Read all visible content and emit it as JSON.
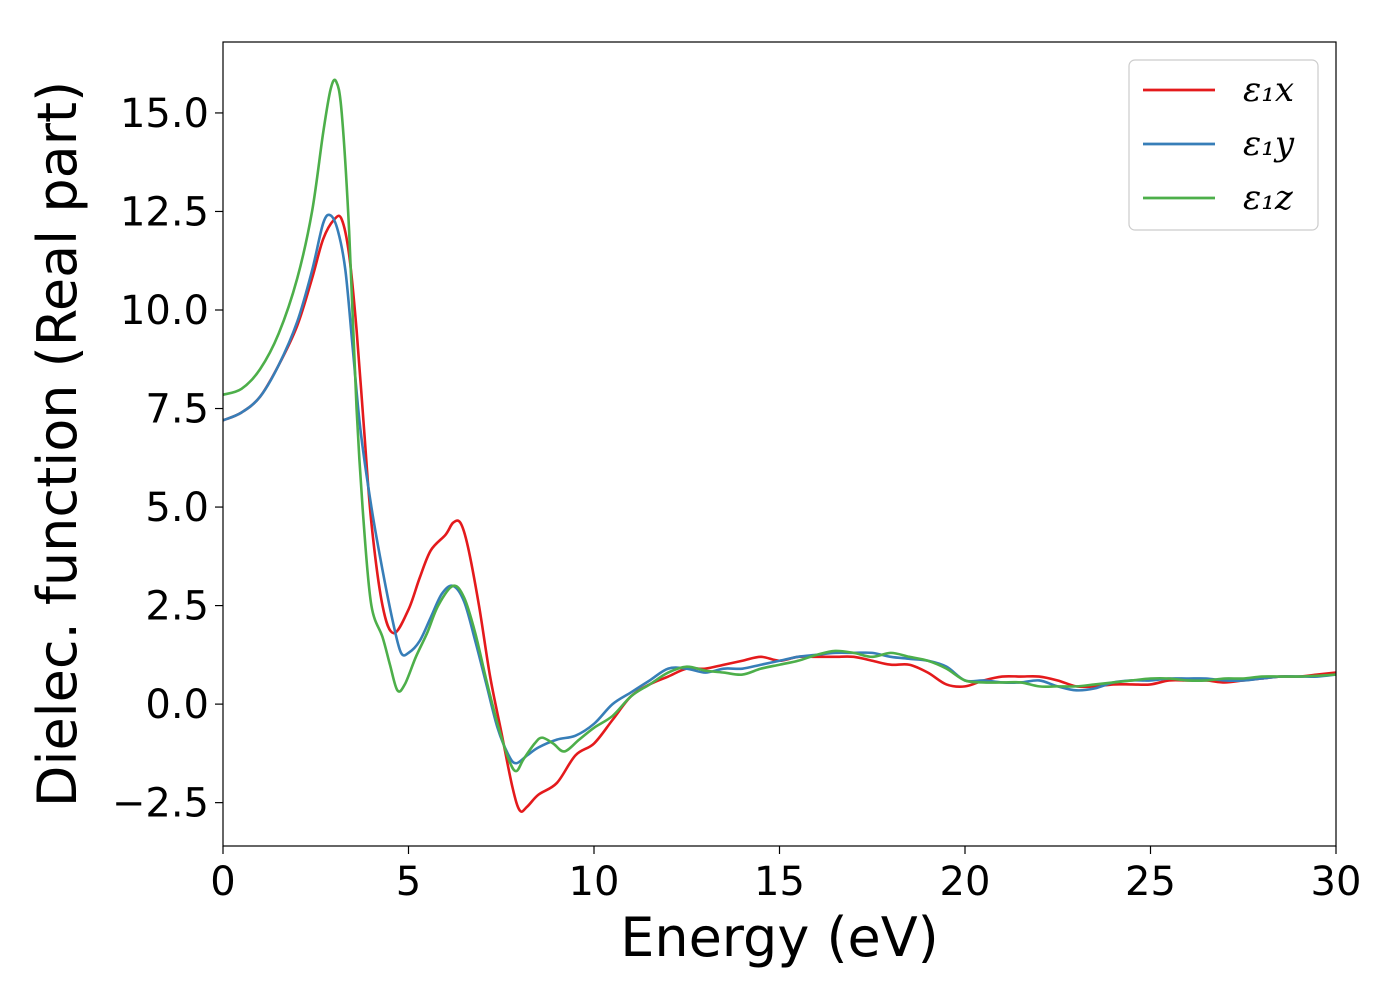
{
  "chart_data": {
    "type": "line",
    "title": "",
    "xlabel": "Energy (eV)",
    "ylabel": "Dielec. function (Real part)",
    "xlim": [
      0,
      30
    ],
    "ylim": [
      -3.6,
      16.8
    ],
    "xticks": [
      0,
      5,
      10,
      15,
      20,
      25,
      30
    ],
    "xtick_labels": [
      "0",
      "5",
      "10",
      "15",
      "20",
      "25",
      "30"
    ],
    "yticks": [
      -2.5,
      0.0,
      2.5,
      5.0,
      7.5,
      10.0,
      12.5,
      15.0
    ],
    "ytick_labels": [
      "−2.5",
      "0.0",
      "2.5",
      "5.0",
      "7.5",
      "10.0",
      "12.5",
      "15.0"
    ],
    "grid": false,
    "legend": {
      "position": "top-right"
    },
    "series": [
      {
        "name": "ε₁x",
        "color": "#e41a1c",
        "points": [
          [
            0,
            7.2
          ],
          [
            0.5,
            7.4
          ],
          [
            1.0,
            7.8
          ],
          [
            1.5,
            8.6
          ],
          [
            2.0,
            9.6
          ],
          [
            2.4,
            10.8
          ],
          [
            2.7,
            11.8
          ],
          [
            3.0,
            12.3
          ],
          [
            3.2,
            12.3
          ],
          [
            3.4,
            11.4
          ],
          [
            3.6,
            9.5
          ],
          [
            3.8,
            7.0
          ],
          [
            4.0,
            4.6
          ],
          [
            4.3,
            2.5
          ],
          [
            4.6,
            1.8
          ],
          [
            5.0,
            2.4
          ],
          [
            5.3,
            3.2
          ],
          [
            5.6,
            3.9
          ],
          [
            6.0,
            4.3
          ],
          [
            6.2,
            4.6
          ],
          [
            6.4,
            4.6
          ],
          [
            6.6,
            4.0
          ],
          [
            6.9,
            2.5
          ],
          [
            7.2,
            0.7
          ],
          [
            7.5,
            -0.7
          ],
          [
            7.8,
            -2.1
          ],
          [
            8.0,
            -2.7
          ],
          [
            8.2,
            -2.6
          ],
          [
            8.5,
            -2.3
          ],
          [
            9.0,
            -2.0
          ],
          [
            9.5,
            -1.3
          ],
          [
            10.0,
            -1.0
          ],
          [
            10.5,
            -0.4
          ],
          [
            11.0,
            0.2
          ],
          [
            11.5,
            0.5
          ],
          [
            12.0,
            0.7
          ],
          [
            12.5,
            0.9
          ],
          [
            13.0,
            0.9
          ],
          [
            13.5,
            1.0
          ],
          [
            14.0,
            1.1
          ],
          [
            14.5,
            1.2
          ],
          [
            15.0,
            1.1
          ],
          [
            15.5,
            1.2
          ],
          [
            16.0,
            1.2
          ],
          [
            16.5,
            1.2
          ],
          [
            17.0,
            1.2
          ],
          [
            17.5,
            1.1
          ],
          [
            18.0,
            1.0
          ],
          [
            18.5,
            1.0
          ],
          [
            19.0,
            0.8
          ],
          [
            19.5,
            0.5
          ],
          [
            20.0,
            0.45
          ],
          [
            20.5,
            0.6
          ],
          [
            21.0,
            0.7
          ],
          [
            21.5,
            0.7
          ],
          [
            22.0,
            0.7
          ],
          [
            22.5,
            0.6
          ],
          [
            23.0,
            0.45
          ],
          [
            23.5,
            0.45
          ],
          [
            24.0,
            0.5
          ],
          [
            24.5,
            0.5
          ],
          [
            25.0,
            0.5
          ],
          [
            25.5,
            0.6
          ],
          [
            26.0,
            0.6
          ],
          [
            26.5,
            0.6
          ],
          [
            27.0,
            0.55
          ],
          [
            27.5,
            0.6
          ],
          [
            28.0,
            0.65
          ],
          [
            28.5,
            0.7
          ],
          [
            29.0,
            0.7
          ],
          [
            29.5,
            0.75
          ],
          [
            30.0,
            0.8
          ]
        ]
      },
      {
        "name": "ε₁y",
        "color": "#377eb8",
        "points": [
          [
            0,
            7.2
          ],
          [
            0.5,
            7.4
          ],
          [
            1.0,
            7.8
          ],
          [
            1.5,
            8.6
          ],
          [
            2.0,
            9.7
          ],
          [
            2.4,
            11.0
          ],
          [
            2.7,
            12.2
          ],
          [
            2.9,
            12.4
          ],
          [
            3.1,
            12.0
          ],
          [
            3.3,
            11.0
          ],
          [
            3.5,
            9.0
          ],
          [
            3.7,
            7.0
          ],
          [
            4.0,
            5.0
          ],
          [
            4.3,
            3.4
          ],
          [
            4.6,
            2.0
          ],
          [
            4.8,
            1.3
          ],
          [
            5.0,
            1.3
          ],
          [
            5.3,
            1.6
          ],
          [
            5.6,
            2.2
          ],
          [
            5.9,
            2.8
          ],
          [
            6.2,
            3.0
          ],
          [
            6.5,
            2.6
          ],
          [
            6.8,
            1.6
          ],
          [
            7.1,
            0.5
          ],
          [
            7.4,
            -0.6
          ],
          [
            7.7,
            -1.3
          ],
          [
            7.9,
            -1.5
          ],
          [
            8.2,
            -1.3
          ],
          [
            8.5,
            -1.1
          ],
          [
            9.0,
            -0.9
          ],
          [
            9.5,
            -0.8
          ],
          [
            10.0,
            -0.5
          ],
          [
            10.5,
            0.0
          ],
          [
            11.0,
            0.3
          ],
          [
            11.5,
            0.6
          ],
          [
            12.0,
            0.9
          ],
          [
            12.5,
            0.9
          ],
          [
            13.0,
            0.8
          ],
          [
            13.5,
            0.9
          ],
          [
            14.0,
            0.9
          ],
          [
            14.5,
            1.0
          ],
          [
            15.0,
            1.1
          ],
          [
            15.5,
            1.2
          ],
          [
            16.0,
            1.25
          ],
          [
            16.5,
            1.3
          ],
          [
            17.0,
            1.3
          ],
          [
            17.5,
            1.3
          ],
          [
            18.0,
            1.2
          ],
          [
            18.5,
            1.15
          ],
          [
            19.0,
            1.1
          ],
          [
            19.5,
            0.95
          ],
          [
            20.0,
            0.6
          ],
          [
            20.5,
            0.6
          ],
          [
            21.0,
            0.55
          ],
          [
            21.5,
            0.55
          ],
          [
            22.0,
            0.6
          ],
          [
            22.5,
            0.45
          ],
          [
            23.0,
            0.35
          ],
          [
            23.5,
            0.4
          ],
          [
            24.0,
            0.55
          ],
          [
            24.5,
            0.6
          ],
          [
            25.0,
            0.6
          ],
          [
            25.5,
            0.65
          ],
          [
            26.0,
            0.65
          ],
          [
            26.5,
            0.65
          ],
          [
            27.0,
            0.6
          ],
          [
            27.5,
            0.6
          ],
          [
            28.0,
            0.65
          ],
          [
            28.5,
            0.7
          ],
          [
            29.0,
            0.7
          ],
          [
            29.5,
            0.7
          ],
          [
            30.0,
            0.75
          ]
        ]
      },
      {
        "name": "ε₁z",
        "color": "#4daf4a",
        "points": [
          [
            0,
            7.85
          ],
          [
            0.5,
            8.0
          ],
          [
            1.0,
            8.5
          ],
          [
            1.5,
            9.4
          ],
          [
            2.0,
            10.8
          ],
          [
            2.4,
            12.5
          ],
          [
            2.7,
            14.5
          ],
          [
            2.9,
            15.6
          ],
          [
            3.05,
            15.8
          ],
          [
            3.2,
            15.0
          ],
          [
            3.4,
            12.0
          ],
          [
            3.6,
            7.5
          ],
          [
            3.8,
            4.5
          ],
          [
            4.0,
            2.5
          ],
          [
            4.3,
            1.7
          ],
          [
            4.5,
            1.0
          ],
          [
            4.7,
            0.35
          ],
          [
            4.9,
            0.5
          ],
          [
            5.2,
            1.2
          ],
          [
            5.5,
            1.8
          ],
          [
            5.8,
            2.5
          ],
          [
            6.2,
            3.0
          ],
          [
            6.5,
            2.7
          ],
          [
            6.8,
            1.8
          ],
          [
            7.1,
            0.6
          ],
          [
            7.4,
            -0.5
          ],
          [
            7.7,
            -1.4
          ],
          [
            7.9,
            -1.7
          ],
          [
            8.1,
            -1.4
          ],
          [
            8.4,
            -1.0
          ],
          [
            8.6,
            -0.85
          ],
          [
            8.9,
            -1.0
          ],
          [
            9.2,
            -1.2
          ],
          [
            9.6,
            -0.9
          ],
          [
            10.0,
            -0.6
          ],
          [
            10.5,
            -0.3
          ],
          [
            11.0,
            0.2
          ],
          [
            11.5,
            0.5
          ],
          [
            12.0,
            0.8
          ],
          [
            12.5,
            0.95
          ],
          [
            13.0,
            0.85
          ],
          [
            13.5,
            0.8
          ],
          [
            14.0,
            0.75
          ],
          [
            14.5,
            0.9
          ],
          [
            15.0,
            1.0
          ],
          [
            15.5,
            1.1
          ],
          [
            16.0,
            1.25
          ],
          [
            16.5,
            1.35
          ],
          [
            17.0,
            1.3
          ],
          [
            17.5,
            1.2
          ],
          [
            18.0,
            1.3
          ],
          [
            18.5,
            1.2
          ],
          [
            19.0,
            1.1
          ],
          [
            19.5,
            0.9
          ],
          [
            20.0,
            0.6
          ],
          [
            20.5,
            0.55
          ],
          [
            21.0,
            0.55
          ],
          [
            21.5,
            0.55
          ],
          [
            22.0,
            0.45
          ],
          [
            22.5,
            0.45
          ],
          [
            23.0,
            0.45
          ],
          [
            23.5,
            0.5
          ],
          [
            24.0,
            0.55
          ],
          [
            24.5,
            0.6
          ],
          [
            25.0,
            0.65
          ],
          [
            25.5,
            0.65
          ],
          [
            26.0,
            0.6
          ],
          [
            26.5,
            0.6
          ],
          [
            27.0,
            0.65
          ],
          [
            27.5,
            0.65
          ],
          [
            28.0,
            0.7
          ],
          [
            28.5,
            0.7
          ],
          [
            29.0,
            0.7
          ],
          [
            29.5,
            0.72
          ],
          [
            30.0,
            0.75
          ]
        ]
      }
    ]
  }
}
